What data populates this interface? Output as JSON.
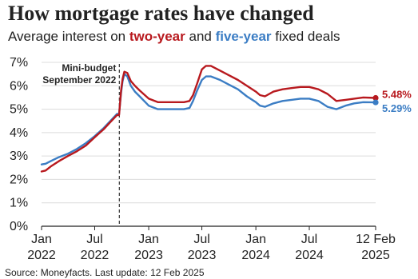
{
  "chart_data": {
    "type": "line",
    "title": "How mortgage rates have changed",
    "subtitle": {
      "pre": "Average interest on ",
      "two": "two-year",
      "mid": " and ",
      "five": "five-year",
      "post": " fixed deals"
    },
    "ylim": [
      0,
      7
    ],
    "y_ticks": [
      "0%",
      "1%",
      "2%",
      "3%",
      "4%",
      "5%",
      "6%",
      "7%"
    ],
    "x_ticks": [
      {
        "date": "2022-01-01",
        "line1": "Jan",
        "line2": "2022"
      },
      {
        "date": "2022-07-01",
        "line1": "Jul",
        "line2": "2022"
      },
      {
        "date": "2023-01-01",
        "line1": "Jan",
        "line2": "2023"
      },
      {
        "date": "2023-07-01",
        "line1": "Jul",
        "line2": "2023"
      },
      {
        "date": "2024-01-01",
        "line1": "Jan",
        "line2": "2024"
      },
      {
        "date": "2024-07-01",
        "line1": "Jul",
        "line2": "2024"
      },
      {
        "date": "2025-02-12",
        "line1": "12 Feb",
        "line2": "2025"
      }
    ],
    "xlim": [
      "2022-01-01",
      "2025-02-12"
    ],
    "grid": true,
    "annotation": {
      "date": "2022-09-23",
      "line1": "Mini-budget",
      "line2": "September 2022"
    },
    "series": [
      {
        "name": "two-year",
        "color": "#b8191e",
        "end_label": "5.48%",
        "points": [
          [
            "2022-01-01",
            2.34
          ],
          [
            "2022-01-15",
            2.38
          ],
          [
            "2022-02-01",
            2.55
          ],
          [
            "2022-03-01",
            2.78
          ],
          [
            "2022-04-01",
            3.0
          ],
          [
            "2022-05-01",
            3.2
          ],
          [
            "2022-06-01",
            3.45
          ],
          [
            "2022-07-01",
            3.8
          ],
          [
            "2022-08-01",
            4.15
          ],
          [
            "2022-08-20",
            4.4
          ],
          [
            "2022-09-15",
            4.75
          ],
          [
            "2022-09-22",
            4.75
          ],
          [
            "2022-09-29",
            5.8
          ],
          [
            "2022-10-04",
            6.3
          ],
          [
            "2022-10-10",
            6.6
          ],
          [
            "2022-10-20",
            6.55
          ],
          [
            "2022-11-01",
            6.2
          ],
          [
            "2022-11-15",
            6.0
          ],
          [
            "2022-12-01",
            5.8
          ],
          [
            "2023-01-01",
            5.45
          ],
          [
            "2023-02-01",
            5.3
          ],
          [
            "2023-03-01",
            5.3
          ],
          [
            "2023-04-01",
            5.3
          ],
          [
            "2023-05-01",
            5.3
          ],
          [
            "2023-05-20",
            5.35
          ],
          [
            "2023-06-01",
            5.6
          ],
          [
            "2023-06-15",
            6.1
          ],
          [
            "2023-07-01",
            6.7
          ],
          [
            "2023-07-15",
            6.85
          ],
          [
            "2023-08-01",
            6.85
          ],
          [
            "2023-09-01",
            6.65
          ],
          [
            "2023-10-01",
            6.45
          ],
          [
            "2023-11-01",
            6.25
          ],
          [
            "2023-12-01",
            6.0
          ],
          [
            "2024-01-01",
            5.75
          ],
          [
            "2024-01-15",
            5.6
          ],
          [
            "2024-02-01",
            5.55
          ],
          [
            "2024-03-01",
            5.75
          ],
          [
            "2024-04-01",
            5.85
          ],
          [
            "2024-05-01",
            5.9
          ],
          [
            "2024-06-01",
            5.95
          ],
          [
            "2024-07-01",
            5.95
          ],
          [
            "2024-08-01",
            5.85
          ],
          [
            "2024-09-01",
            5.65
          ],
          [
            "2024-10-01",
            5.35
          ],
          [
            "2024-11-01",
            5.4
          ],
          [
            "2024-12-01",
            5.45
          ],
          [
            "2025-01-01",
            5.5
          ],
          [
            "2025-02-12",
            5.48
          ]
        ]
      },
      {
        "name": "five-year",
        "color": "#3b7dc4",
        "end_label": "5.29%",
        "points": [
          [
            "2022-01-01",
            2.64
          ],
          [
            "2022-01-15",
            2.67
          ],
          [
            "2022-02-01",
            2.78
          ],
          [
            "2022-03-01",
            2.95
          ],
          [
            "2022-04-01",
            3.1
          ],
          [
            "2022-05-01",
            3.3
          ],
          [
            "2022-06-01",
            3.55
          ],
          [
            "2022-07-01",
            3.85
          ],
          [
            "2022-08-01",
            4.2
          ],
          [
            "2022-08-20",
            4.45
          ],
          [
            "2022-09-15",
            4.8
          ],
          [
            "2022-09-22",
            4.8
          ],
          [
            "2022-09-29",
            5.7
          ],
          [
            "2022-10-04",
            6.2
          ],
          [
            "2022-10-10",
            6.5
          ],
          [
            "2022-10-20",
            6.4
          ],
          [
            "2022-11-01",
            6.0
          ],
          [
            "2022-11-15",
            5.75
          ],
          [
            "2022-12-01",
            5.55
          ],
          [
            "2023-01-01",
            5.15
          ],
          [
            "2023-02-01",
            5.0
          ],
          [
            "2023-03-01",
            5.0
          ],
          [
            "2023-04-01",
            5.0
          ],
          [
            "2023-05-01",
            5.0
          ],
          [
            "2023-05-20",
            5.05
          ],
          [
            "2023-06-01",
            5.35
          ],
          [
            "2023-06-15",
            5.8
          ],
          [
            "2023-07-01",
            6.25
          ],
          [
            "2023-07-15",
            6.4
          ],
          [
            "2023-08-01",
            6.4
          ],
          [
            "2023-09-01",
            6.25
          ],
          [
            "2023-10-01",
            6.05
          ],
          [
            "2023-11-01",
            5.85
          ],
          [
            "2023-12-01",
            5.55
          ],
          [
            "2024-01-01",
            5.3
          ],
          [
            "2024-01-15",
            5.15
          ],
          [
            "2024-02-01",
            5.1
          ],
          [
            "2024-03-01",
            5.25
          ],
          [
            "2024-04-01",
            5.35
          ],
          [
            "2024-05-01",
            5.4
          ],
          [
            "2024-06-01",
            5.45
          ],
          [
            "2024-07-01",
            5.45
          ],
          [
            "2024-08-01",
            5.35
          ],
          [
            "2024-09-01",
            5.1
          ],
          [
            "2024-10-01",
            5.0
          ],
          [
            "2024-11-01",
            5.15
          ],
          [
            "2024-12-01",
            5.25
          ],
          [
            "2025-01-01",
            5.3
          ],
          [
            "2025-02-12",
            5.29
          ]
        ]
      }
    ],
    "source": "Source: Moneyfacts. Last update: 12 Feb 2025"
  }
}
